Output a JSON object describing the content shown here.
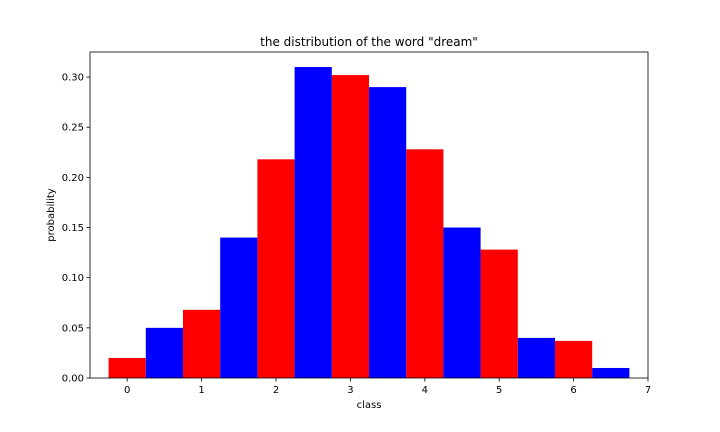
{
  "chart_data": {
    "type": "bar",
    "title": "the distribution of the word \"dream\"",
    "xlabel": "class",
    "ylabel": "probability",
    "xlim": [
      -0.5,
      7
    ],
    "ylim": [
      0,
      0.325
    ],
    "x_ticks": [
      "0",
      "1",
      "2",
      "3",
      "4",
      "5",
      "6",
      "7"
    ],
    "y_ticks": [
      "0.00",
      "0.05",
      "0.10",
      "0.15",
      "0.20",
      "0.25",
      "0.30"
    ],
    "bar_width": 0.5,
    "series": [
      {
        "color": "#ff0000",
        "x": [
          0,
          1,
          2,
          3,
          4,
          5,
          6
        ],
        "values": [
          0.02,
          0.068,
          0.218,
          0.302,
          0.228,
          0.128,
          0.037
        ]
      },
      {
        "color": "#0000ff",
        "x": [
          0.5,
          1.5,
          2.5,
          3.5,
          4.5,
          5.5,
          6.5
        ],
        "values": [
          0.05,
          0.14,
          0.31,
          0.29,
          0.15,
          0.04,
          0.01
        ]
      }
    ]
  }
}
